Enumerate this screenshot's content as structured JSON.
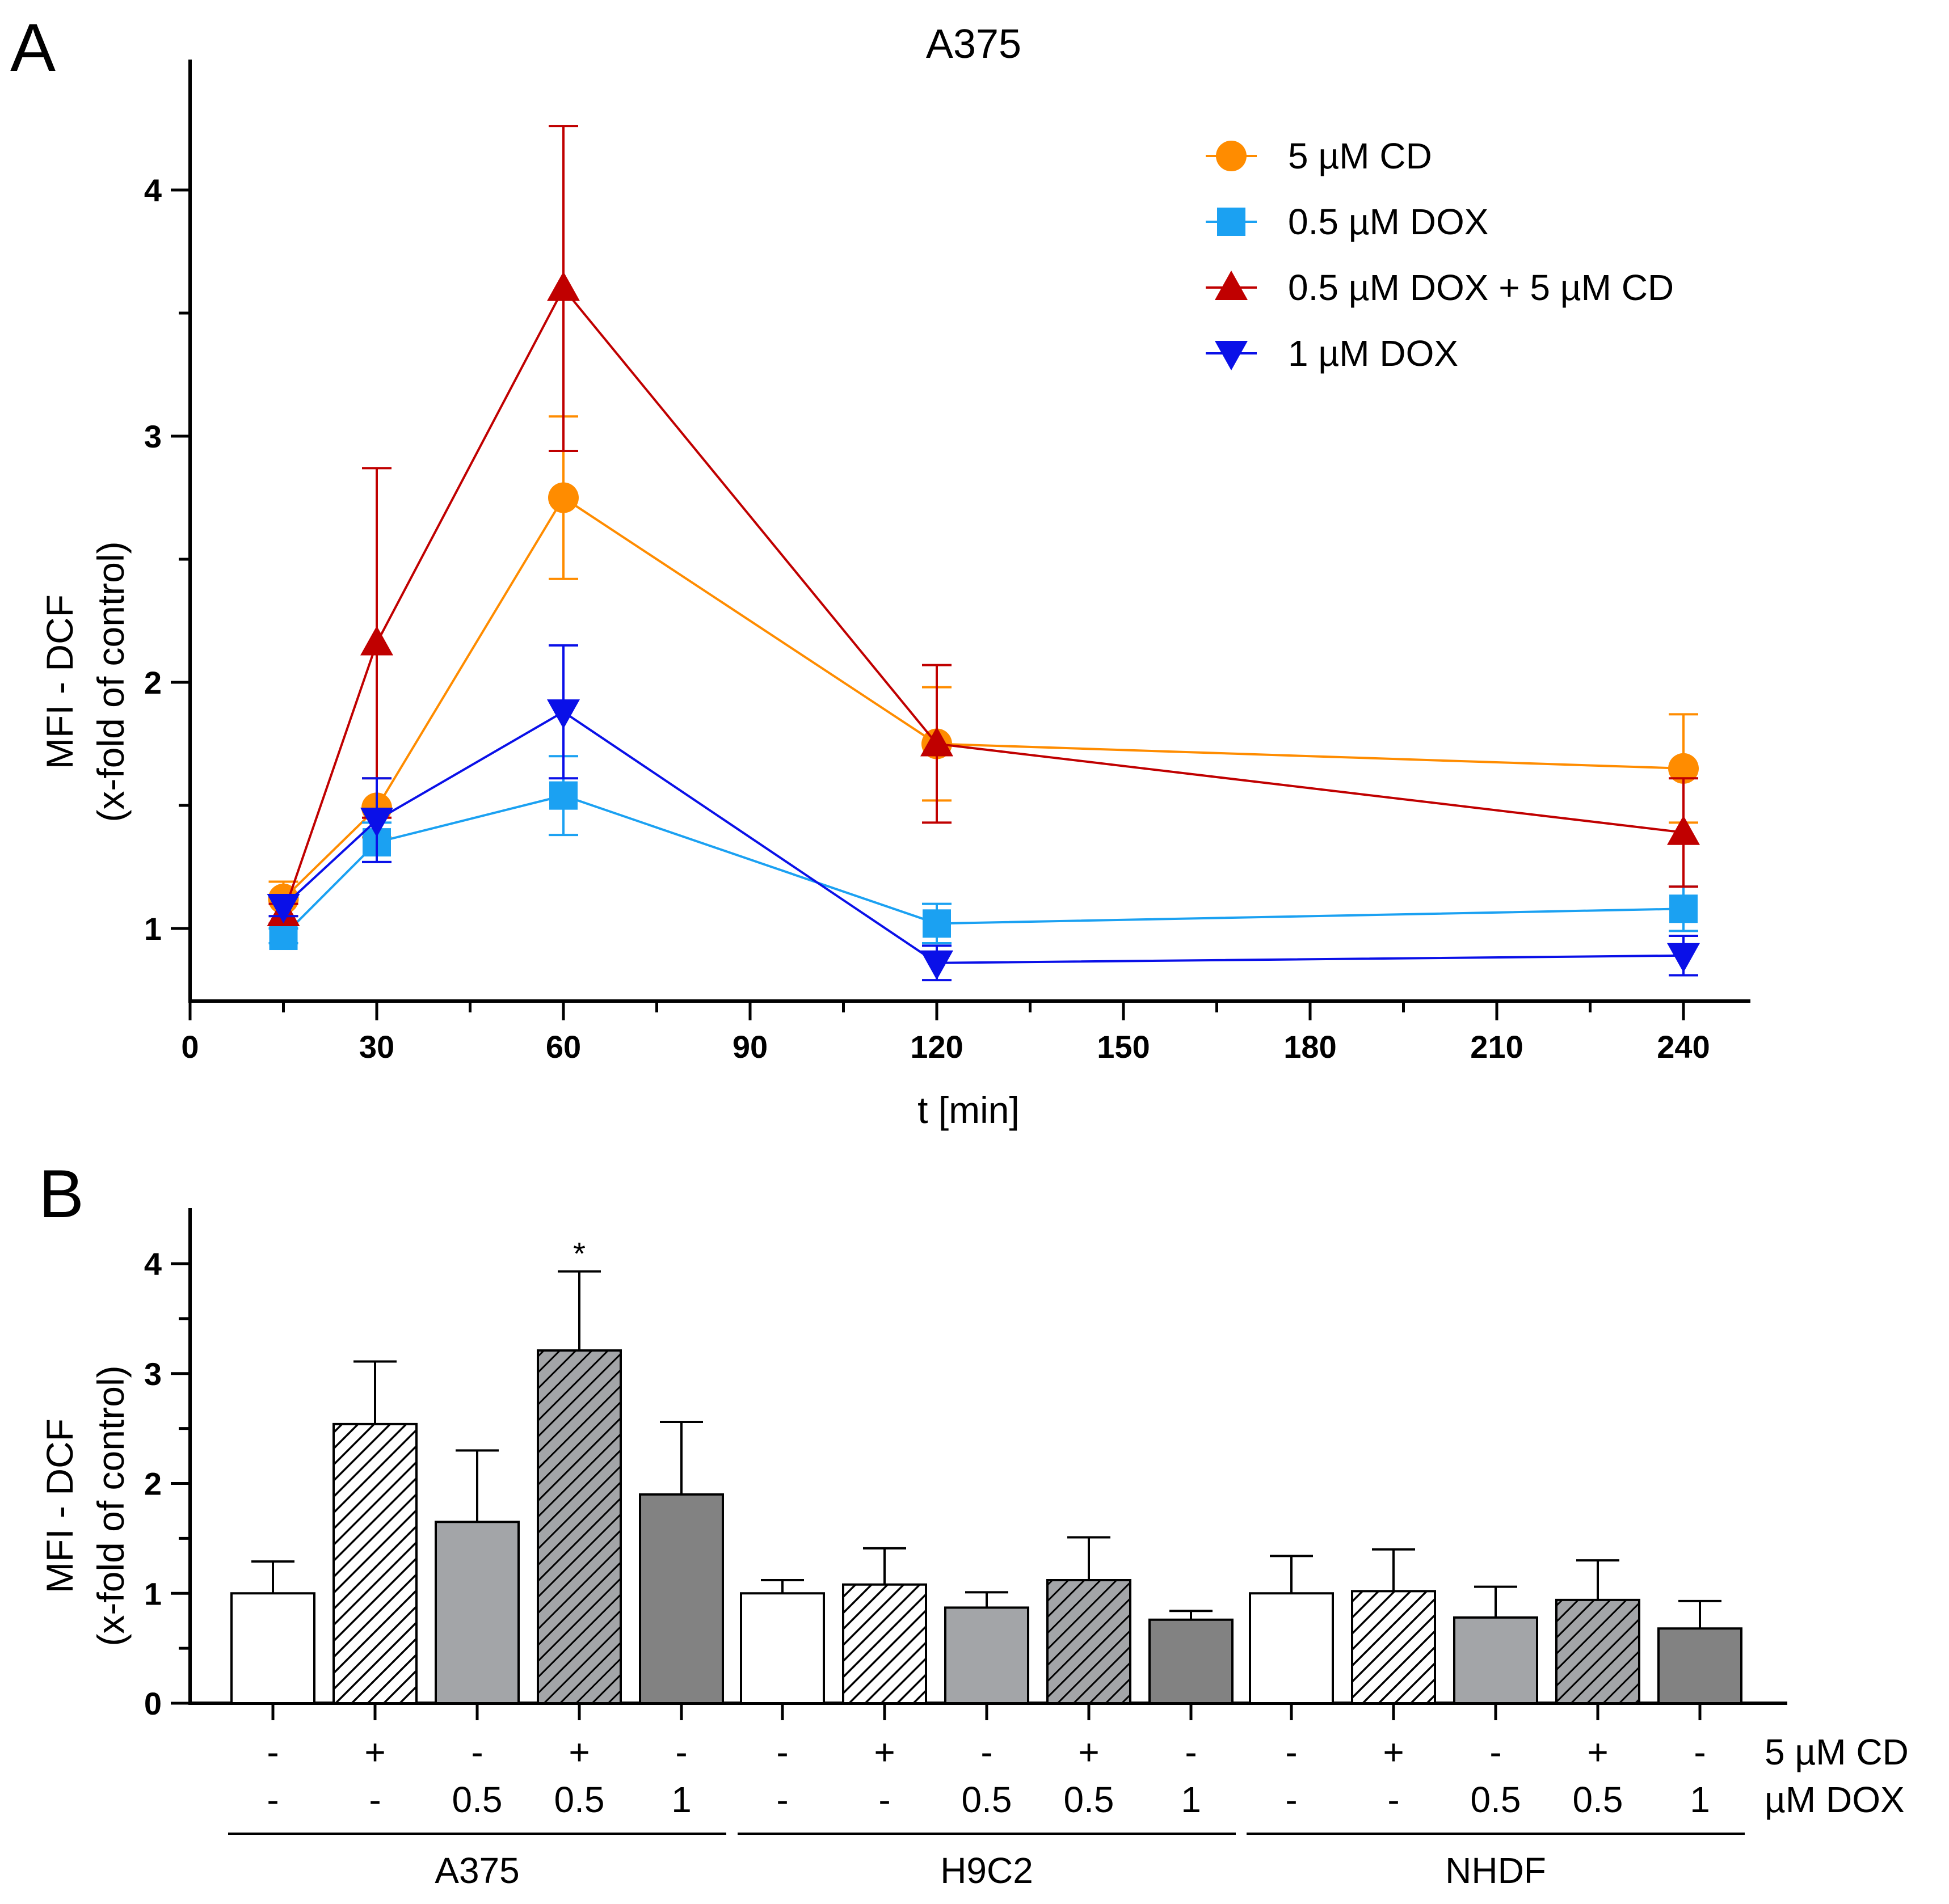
{
  "chart_data": [
    {
      "panel": "A",
      "type": "line",
      "title": "A375",
      "xlabel": "t [min]",
      "ylabel_line1": "MFI - DCF",
      "ylabel_line2": "(x-fold of control)",
      "xlim": [
        0,
        250
      ],
      "ylim": [
        0.7,
        4.5
      ],
      "xticks": [
        0,
        30,
        60,
        90,
        120,
        150,
        180,
        210,
        240
      ],
      "xtick_labels": [
        "0",
        "30",
        "60",
        "90",
        "120",
        "150",
        "180",
        "210",
        "240"
      ],
      "yticks": [
        1,
        2,
        3,
        4
      ],
      "ytick_labels": [
        "1",
        "2",
        "3",
        "4"
      ],
      "legend_position": "top-right",
      "series": [
        {
          "name": "5 µM CD",
          "color": "#FF8C00",
          "marker": "circle",
          "x": [
            15,
            30,
            60,
            120,
            240
          ],
          "y": [
            1.12,
            1.49,
            2.75,
            1.75,
            1.65
          ],
          "err": [
            0.07,
            0.12,
            0.33,
            0.23,
            0.22
          ]
        },
        {
          "name": "0.5 µM DOX",
          "color": "#1BA1F2",
          "marker": "square",
          "x": [
            15,
            30,
            60,
            120,
            240
          ],
          "y": [
            0.97,
            1.35,
            1.54,
            1.02,
            1.08
          ],
          "err": [
            0.03,
            0.08,
            0.16,
            0.08,
            0.09
          ]
        },
        {
          "name": "0.5 µM DOX + 5 µM CD",
          "color": "#C00000",
          "marker": "triangle-up",
          "x": [
            15,
            30,
            60,
            120,
            240
          ],
          "y": [
            1.06,
            2.16,
            3.6,
            1.75,
            1.39
          ],
          "err": [
            0.04,
            0.71,
            0.66,
            0.32,
            0.22
          ]
        },
        {
          "name": "1 µM DOX",
          "color": "#0A10E8",
          "marker": "triangle-down",
          "x": [
            15,
            30,
            60,
            120,
            240
          ],
          "y": [
            1.09,
            1.44,
            1.88,
            0.86,
            0.89
          ],
          "err": [
            0.04,
            0.17,
            0.27,
            0.07,
            0.08
          ]
        }
      ]
    },
    {
      "panel": "B",
      "type": "bar",
      "ylabel_line1": "MFI - DCF",
      "ylabel_line2": "(x-fold of control)",
      "ylim": [
        0,
        4.5
      ],
      "yticks": [
        0,
        1,
        2,
        3,
        4
      ],
      "ytick_labels": [
        "0",
        "1",
        "2",
        "3",
        "4"
      ],
      "row_labels": [
        "5 µM  CD",
        "µM DOX"
      ],
      "groups": [
        "A375",
        "H9C2",
        "NHDF"
      ],
      "cd": [
        "-",
        "+",
        "-",
        "+",
        "-"
      ],
      "dox": [
        "-",
        "-",
        "0.5",
        "0.5",
        "1"
      ],
      "bar_styles": [
        "white",
        "hatch-white",
        "light-gray",
        "hatch-gray",
        "dark-gray"
      ],
      "style_colors": {
        "white": "#FFFFFF",
        "light-gray": "#A3A5A8",
        "hatch-gray": "#A3A5A8",
        "dark-gray": "#828282"
      },
      "series": [
        {
          "name": "A375",
          "values": [
            1.0,
            2.54,
            1.65,
            3.21,
            1.9
          ],
          "err": [
            0.29,
            0.57,
            0.65,
            0.72,
            0.66
          ]
        },
        {
          "name": "H9C2",
          "values": [
            1.0,
            1.08,
            0.87,
            1.12,
            0.76
          ],
          "err": [
            0.12,
            0.33,
            0.14,
            0.39,
            0.08
          ]
        },
        {
          "name": "NHDF",
          "values": [
            1.0,
            1.02,
            0.78,
            0.94,
            0.68
          ],
          "err": [
            0.34,
            0.38,
            0.28,
            0.36,
            0.25
          ]
        }
      ],
      "annotations": [
        {
          "group": "A375",
          "bar_index": 3,
          "text": "*"
        }
      ]
    }
  ]
}
